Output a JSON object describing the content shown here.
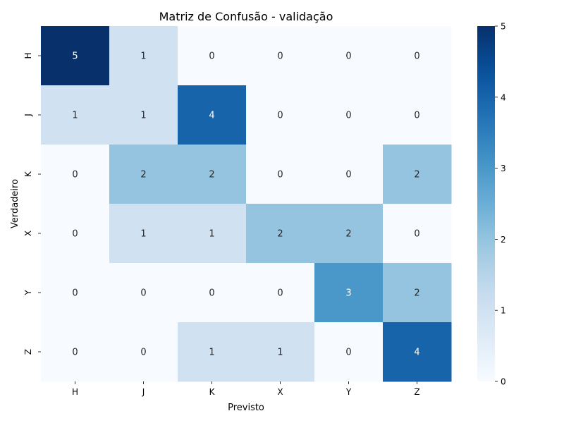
{
  "chart_data": {
    "type": "heatmap",
    "title": "Matriz de Confusão - validação",
    "xlabel": "Previsto",
    "ylabel": "Verdadeiro",
    "x_categories": [
      "H",
      "J",
      "K",
      "X",
      "Y",
      "Z"
    ],
    "y_categories": [
      "H",
      "J",
      "K",
      "X",
      "Y",
      "Z"
    ],
    "values": [
      [
        5,
        1,
        0,
        0,
        0,
        0
      ],
      [
        1,
        1,
        4,
        0,
        0,
        0
      ],
      [
        0,
        2,
        2,
        0,
        0,
        2
      ],
      [
        0,
        1,
        1,
        2,
        2,
        0
      ],
      [
        0,
        0,
        0,
        0,
        3,
        2
      ],
      [
        0,
        0,
        1,
        1,
        0,
        4
      ]
    ],
    "colorbar": {
      "min": 0,
      "max": 5,
      "ticks": [
        0,
        1,
        2,
        3,
        4,
        5
      ]
    },
    "colormap": "Blues",
    "grid": false
  }
}
